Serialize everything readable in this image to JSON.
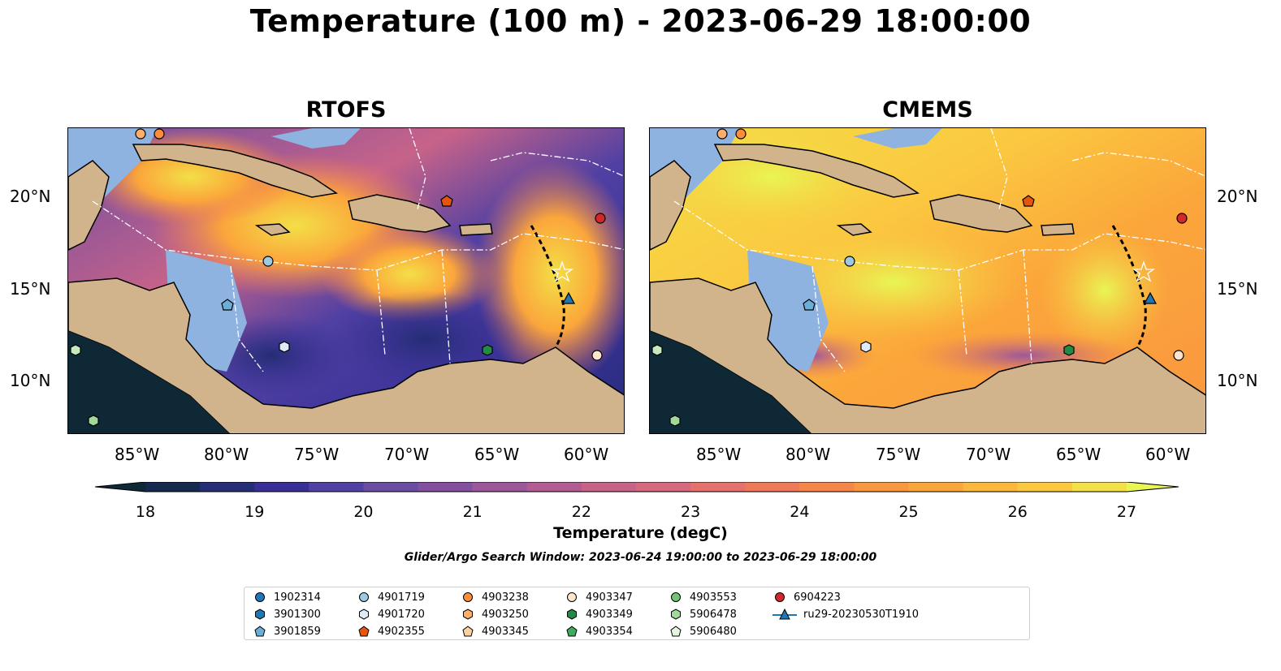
{
  "title": "Temperature (100 m) - 2023-06-29 18:00:00",
  "panels": [
    {
      "title": "RTOFS",
      "palette": "dark"
    },
    {
      "title": "CMEMS",
      "palette": "warm"
    }
  ],
  "axes": {
    "lon_labels": [
      "85°W",
      "80°W",
      "75°W",
      "70°W",
      "65°W",
      "60°W"
    ],
    "lat_labels": [
      "20°N",
      "15°N",
      "10°N"
    ]
  },
  "colorbar": {
    "ticks": [
      "18",
      "19",
      "20",
      "21",
      "22",
      "23",
      "24",
      "25",
      "26",
      "27"
    ],
    "label": "Temperature (degC)",
    "colors": [
      "#0e2836",
      "#16294e",
      "#252d75",
      "#383096",
      "#5040a3",
      "#6a4ca2",
      "#834f9f",
      "#9c579b",
      "#b35c93",
      "#c76389",
      "#d7697d",
      "#e5716c",
      "#ef7a5a",
      "#f58649",
      "#f99640",
      "#fba63b",
      "#fcb83c",
      "#fbc840",
      "#f3df47",
      "#e8f654"
    ]
  },
  "search_window": "Glider/Argo Search Window: 2023-06-24 19:00:00 to 2023-06-29 18:00:00",
  "colors": {
    "land": "#d2b48c",
    "shelf": "#8fb3e0",
    "dark_blue": "#1f77b4",
    "light_blue": "#9ecae1",
    "orange": "#fd8d3c",
    "peach": "#fdae6b",
    "pale": "#fdd0a2",
    "green_dark": "#31a354",
    "green": "#74c476",
    "green_light": "#a1d99b",
    "green_pale": "#c7e9c0",
    "red": "#d62728"
  },
  "legend": [
    {
      "label": "1902314",
      "marker": "circle",
      "color": "#1f77b4"
    },
    {
      "label": "3901300",
      "marker": "hexagon",
      "color": "#1f77b4"
    },
    {
      "label": "3901859",
      "marker": "pentagon",
      "color": "#6baed6"
    },
    {
      "label": "4901719",
      "marker": "circle",
      "color": "#9ecae1"
    },
    {
      "label": "4901720",
      "marker": "hexagon",
      "color": "#deebf7"
    },
    {
      "label": "4902355",
      "marker": "pentagon",
      "color": "#e6550d"
    },
    {
      "label": "4903238",
      "marker": "circle",
      "color": "#fd8d3c"
    },
    {
      "label": "4903250",
      "marker": "hexagon",
      "color": "#fdae6b"
    },
    {
      "label": "4903345",
      "marker": "pentagon",
      "color": "#fdd0a2"
    },
    {
      "label": "4903347",
      "marker": "circle",
      "color": "#fee6ce"
    },
    {
      "label": "4903349",
      "marker": "hexagon",
      "color": "#238b45"
    },
    {
      "label": "4903354",
      "marker": "pentagon",
      "color": "#41ab5d"
    },
    {
      "label": "4903553",
      "marker": "circle",
      "color": "#74c476"
    },
    {
      "label": "5906478",
      "marker": "hexagon",
      "color": "#a1d99b"
    },
    {
      "label": "5906480",
      "marker": "pentagon",
      "color": "#e5f5e0"
    },
    {
      "label": "6904223",
      "marker": "circle",
      "color": "#d62728"
    },
    {
      "label": "ru29-20230530T1910",
      "marker": "triangle-line",
      "color": "#1f77b4"
    }
  ]
}
